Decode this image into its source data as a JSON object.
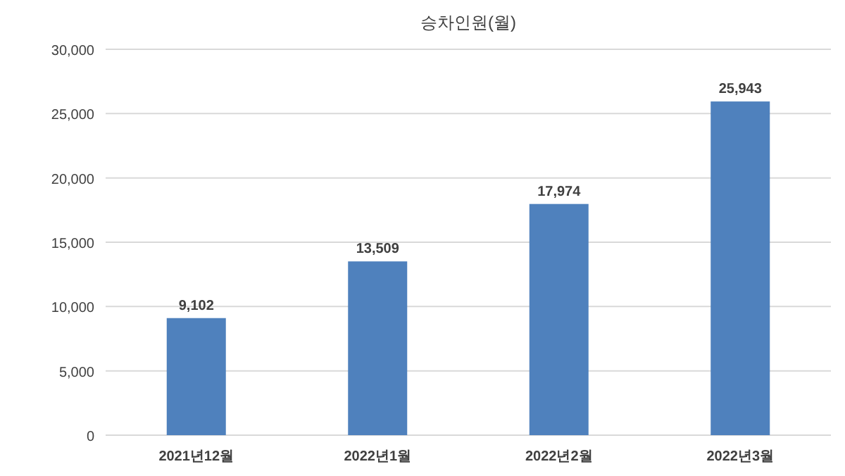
{
  "chart_data": {
    "type": "bar",
    "title": "승차인원(월)",
    "categories": [
      "2021년12월",
      "2022년1월",
      "2022년2월",
      "2022년3월"
    ],
    "values": [
      9102,
      13509,
      17974,
      25943
    ],
    "value_labels": [
      "9,102",
      "13,509",
      "17,974",
      "25,943"
    ],
    "color": "#4f81bd",
    "ylim": [
      0,
      30000
    ],
    "yticks": [
      {
        "value": 0,
        "label": "0"
      },
      {
        "value": 5000,
        "label": "5,000"
      },
      {
        "value": 10000,
        "label": "10,000"
      },
      {
        "value": 15000,
        "label": "15,000"
      },
      {
        "value": 20000,
        "label": "20,000"
      },
      {
        "value": 25000,
        "label": "25,000"
      },
      {
        "value": 30000,
        "label": "30,000"
      }
    ],
    "grid": "y"
  }
}
